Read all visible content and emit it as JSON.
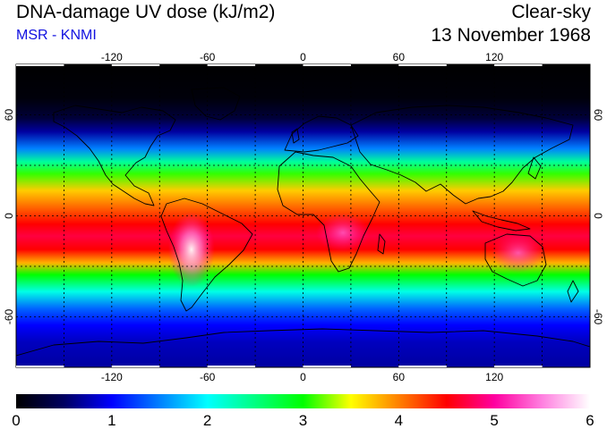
{
  "header": {
    "title": "DNA-damage UV dose (kJ/m2)",
    "subtitle": "MSR - KNMI",
    "sky_condition": "Clear-sky",
    "date": "13 November 1968"
  },
  "map": {
    "projection": "equirectangular",
    "lon_range": [
      -180,
      180
    ],
    "lat_range": [
      -90,
      90
    ],
    "lon_ticks": [
      -120,
      -60,
      0,
      60,
      120
    ],
    "lon_tick_labels": [
      "-120",
      "-60",
      "0",
      "60",
      "120"
    ],
    "lat_ticks": [
      60,
      0,
      -60
    ],
    "lat_tick_labels": [
      "60",
      "0",
      "-60"
    ],
    "grid": "dotted, every 30 degrees",
    "coastlines": true,
    "colors": {
      "night": "#000014",
      "frame": "#000000",
      "grid": "#000000"
    }
  },
  "colorbar": {
    "min": 0,
    "max": 6,
    "tick_labels": [
      "0",
      "1",
      "2",
      "3",
      "4",
      "5",
      "6"
    ],
    "stops": [
      {
        "value": 0,
        "color": "#000000"
      },
      {
        "value": 0.5,
        "color": "#000060"
      },
      {
        "value": 1,
        "color": "#0000ff"
      },
      {
        "value": 1.5,
        "color": "#0080ff"
      },
      {
        "value": 2,
        "color": "#00ffff"
      },
      {
        "value": 2.5,
        "color": "#00ff80"
      },
      {
        "value": 3,
        "color": "#00ff00"
      },
      {
        "value": 3.5,
        "color": "#ffff00"
      },
      {
        "value": 4,
        "color": "#ff8000"
      },
      {
        "value": 4.5,
        "color": "#ff0000"
      },
      {
        "value": 5,
        "color": "#ff00a0"
      },
      {
        "value": 5.5,
        "color": "#ff80e0"
      },
      {
        "value": 6,
        "color": "#ffffff"
      }
    ]
  },
  "uv_profile": [
    {
      "lat": 90,
      "dose": 0.0
    },
    {
      "lat": 70,
      "dose": 0.05
    },
    {
      "lat": 58,
      "dose": 0.3
    },
    {
      "lat": 50,
      "dose": 0.7
    },
    {
      "lat": 40,
      "dose": 1.5
    },
    {
      "lat": 32,
      "dose": 2.4
    },
    {
      "lat": 25,
      "dose": 3.1
    },
    {
      "lat": 15,
      "dose": 3.7
    },
    {
      "lat": 5,
      "dose": 4.1
    },
    {
      "lat": -5,
      "dose": 4.5
    },
    {
      "lat": -12,
      "dose": 4.7
    },
    {
      "lat": -20,
      "dose": 4.5
    },
    {
      "lat": -28,
      "dose": 3.8
    },
    {
      "lat": -35,
      "dose": 3.0
    },
    {
      "lat": -45,
      "dose": 2.1
    },
    {
      "lat": -55,
      "dose": 1.4
    },
    {
      "lat": -65,
      "dose": 1.0
    },
    {
      "lat": -75,
      "dose": 0.8
    },
    {
      "lat": -90,
      "dose": 0.7
    }
  ],
  "uv_hotspots": [
    {
      "region": "Andes",
      "lon": -70,
      "lat": -20,
      "dose": 6.0
    },
    {
      "region": "Central Africa",
      "lon": 25,
      "lat": -10,
      "dose": 5.4
    },
    {
      "region": "Australia",
      "lon": 135,
      "lat": -22,
      "dose": 5.2
    }
  ]
}
